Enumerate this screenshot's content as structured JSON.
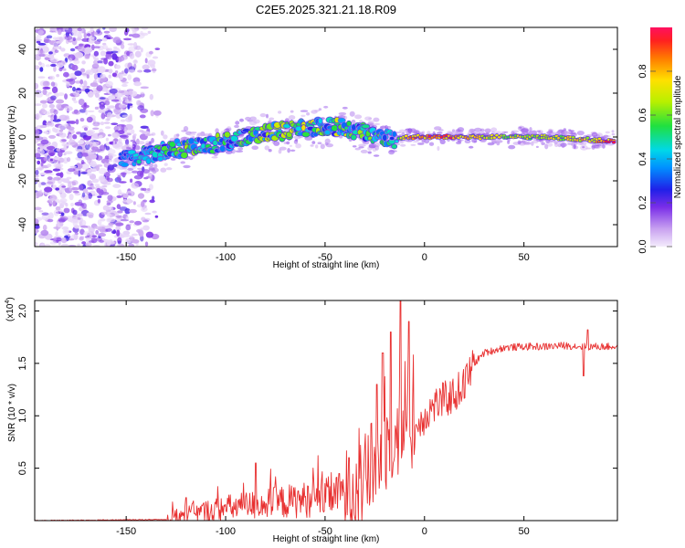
{
  "figure_title": "C2E5.2025.321.21.18.R09",
  "chart_data": [
    {
      "type": "heatmap",
      "xlabel": "Height of straight line (km)",
      "ylabel": "Frequency (Hz)",
      "xlim": [
        -196,
        97
      ],
      "ylim": [
        -50,
        50
      ],
      "x_ticks": [
        -150,
        -100,
        -50,
        0,
        50
      ],
      "y_ticks": [
        -40,
        -20,
        0,
        20,
        40
      ],
      "colorbar": {
        "label": "Normalized spectral amplitude",
        "range": [
          0,
          1
        ],
        "ticks": [
          0.0,
          0.2,
          0.4,
          0.6,
          0.8
        ],
        "tick_labels": [
          "0.0",
          "0.2",
          "0.4",
          "0.6",
          "0.8"
        ]
      },
      "signal_trace": {
        "x": [
          -150,
          -140,
          -130,
          -120,
          -110,
          -100,
          -90,
          -80,
          -70,
          -60,
          -50,
          -40,
          -30,
          -20,
          -15,
          -10,
          0,
          10,
          20,
          40,
          60,
          80,
          95
        ],
        "y": [
          -10,
          -8,
          -6,
          -5,
          -4,
          -2,
          0,
          2,
          3,
          4,
          5,
          4,
          2,
          0,
          -2,
          0,
          0,
          0,
          0,
          0,
          0,
          -1,
          -2
        ],
        "peak_amplitude": [
          0.3,
          0.4,
          0.45,
          0.5,
          0.5,
          0.55,
          0.5,
          0.55,
          0.55,
          0.6,
          0.6,
          0.55,
          0.5,
          0.45,
          0.4,
          0.9,
          0.95,
          0.95,
          0.9,
          0.75,
          0.7,
          0.8,
          0.95
        ]
      },
      "noise_region_x": [
        -196,
        -140
      ]
    },
    {
      "type": "line",
      "xlabel": "Height of straight line (km)",
      "ylabel": "SNR (10 * v/v)",
      "y_multiplier": "(x10",
      "y_multiplier_exp": "4",
      "y_multiplier_close": ")",
      "xlim": [
        -196,
        97
      ],
      "ylim": [
        0,
        2.1
      ],
      "x_ticks": [
        -150,
        -100,
        -50,
        0,
        50
      ],
      "y_ticks": [
        0.5,
        1.0,
        1.5,
        2.0
      ],
      "y_tick_labels": [
        "0.5",
        "1.0",
        "1.5",
        "2.0"
      ],
      "series": [
        {
          "name": "SNR",
          "color": "#e83030",
          "baseline": {
            "x": [
              -196,
              -130,
              -120,
              -100,
              -80,
              -60,
              -50,
              -40,
              -30,
              -25,
              -20,
              -15,
              -10,
              -5,
              0,
              5,
              10,
              15,
              20,
              25,
              30,
              40,
              50,
              60,
              70,
              80,
              90,
              97
            ],
            "y": [
              0.0,
              0.01,
              0.05,
              0.12,
              0.16,
              0.2,
              0.22,
              0.28,
              0.38,
              0.55,
              0.7,
              0.8,
              0.9,
              0.85,
              1.0,
              1.1,
              1.15,
              1.2,
              1.3,
              1.5,
              1.6,
              1.65,
              1.66,
              1.66,
              1.67,
              1.66,
              1.66,
              1.66
            ]
          },
          "spikes": [
            {
              "x": -120,
              "y": 0.22
            },
            {
              "x": -85,
              "y": 0.55
            },
            {
              "x": -43,
              "y": 0.45
            },
            {
              "x": -38,
              "y": 0.6
            },
            {
              "x": -24,
              "y": 1.3
            },
            {
              "x": -21,
              "y": 1.6
            },
            {
              "x": -17,
              "y": 1.8
            },
            {
              "x": -12,
              "y": 2.1
            },
            {
              "x": -8,
              "y": 1.9
            },
            {
              "x": 80,
              "y": 1.38
            },
            {
              "x": 82,
              "y": 1.82
            }
          ]
        }
      ]
    }
  ]
}
